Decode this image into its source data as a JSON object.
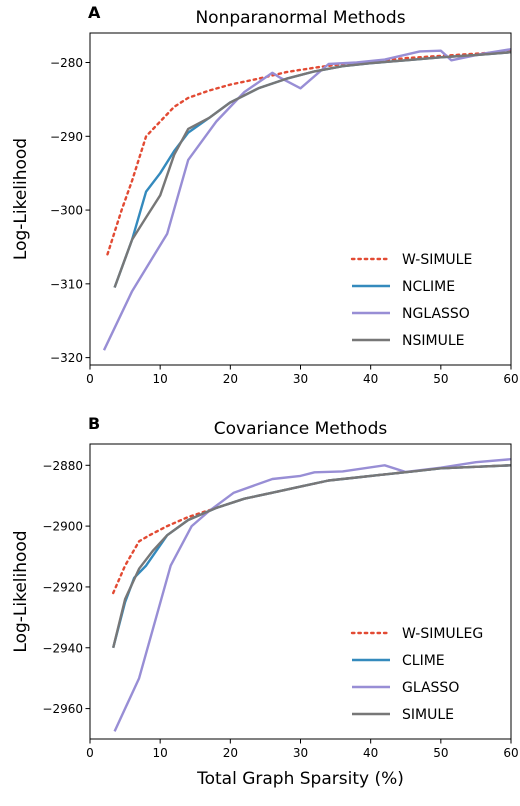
{
  "chart_data": [
    {
      "panel_letter": "A",
      "type": "line",
      "title": "Nonparanormal Methods",
      "xlabel": "",
      "ylabel": "Log-Likelihood",
      "xlim": [
        0,
        60
      ],
      "ylim": [
        -321,
        -276
      ],
      "xticks": [
        0,
        10,
        20,
        30,
        40,
        50,
        60
      ],
      "yticks": [
        -320,
        -310,
        -300,
        -290,
        -280
      ],
      "grid": false,
      "legend_position": "lower-right",
      "series": [
        {
          "name": "W-SIMULE",
          "color": "#e24a33",
          "dash": "dotted",
          "x": [
            2.5,
            4.5,
            6,
            8,
            10,
            12,
            14,
            17,
            20,
            24,
            28,
            32,
            36,
            40,
            45,
            50,
            55,
            60
          ],
          "y": [
            -306,
            -300,
            -296,
            -290,
            -288,
            -286,
            -284.8,
            -283.8,
            -283,
            -282.2,
            -281.3,
            -280.7,
            -280.2,
            -279.9,
            -279.4,
            -279.1,
            -278.8,
            -278.5
          ]
        },
        {
          "name": "NCLIME",
          "color": "#348abd",
          "dash": "solid",
          "x": [
            3.5,
            6,
            8,
            10,
            12,
            14,
            17,
            20,
            24,
            28,
            32,
            36,
            40,
            45,
            50,
            55,
            60
          ],
          "y": [
            -310.5,
            -304,
            -297.5,
            -295,
            -292,
            -289.5,
            -287.5,
            -285.4,
            -283.5,
            -282.2,
            -281.2,
            -280.5,
            -280.1,
            -279.7,
            -279.3,
            -279,
            -278.6
          ]
        },
        {
          "name": "NGLASSO",
          "color": "#988ed5",
          "dash": "solid",
          "x": [
            2,
            6,
            11,
            14,
            18,
            22,
            26,
            27,
            30,
            34,
            38,
            42,
            47,
            50,
            51.5,
            56,
            60
          ],
          "y": [
            -319,
            -311,
            -303.2,
            -293.2,
            -288,
            -284,
            -281.4,
            -282,
            -283.5,
            -280.2,
            -280,
            -279.6,
            -278.5,
            -278.4,
            -279.7,
            -278.8,
            -278.2
          ]
        },
        {
          "name": "NSIMULE",
          "color": "#777777",
          "dash": "solid",
          "x": [
            3.5,
            6,
            8,
            10,
            12,
            14,
            17,
            20,
            24,
            28,
            32,
            36,
            40,
            45,
            50,
            55,
            60
          ],
          "y": [
            -310.5,
            -304,
            -301,
            -298,
            -292.5,
            -289,
            -287.5,
            -285.4,
            -283.5,
            -282.2,
            -281.2,
            -280.5,
            -280.1,
            -279.7,
            -279.3,
            -279,
            -278.6
          ]
        }
      ]
    },
    {
      "panel_letter": "B",
      "type": "line",
      "title": "Covariance Methods",
      "xlabel": "Total Graph Sparsity (%)",
      "ylabel": "Log-Likelihood",
      "xlim": [
        0,
        60
      ],
      "ylim": [
        -2970,
        -2873
      ],
      "xticks": [
        0,
        10,
        20,
        30,
        40,
        50,
        60
      ],
      "yticks": [
        -2960,
        -2940,
        -2920,
        -2900,
        -2880
      ],
      "grid": false,
      "legend_position": "lower-right",
      "series": [
        {
          "name": "W-SIMULEG",
          "color": "#e24a33",
          "dash": "dotted",
          "x": [
            3.3,
            5,
            7,
            8.5,
            11,
            14,
            18,
            22,
            26,
            30,
            34,
            38,
            42,
            46,
            50,
            55,
            60
          ],
          "y": [
            -2922,
            -2913,
            -2905,
            -2903,
            -2900,
            -2897,
            -2894,
            -2891,
            -2889,
            -2887,
            -2885,
            -2884,
            -2883,
            -2882,
            -2881,
            -2880.5,
            -2880
          ]
        },
        {
          "name": "CLIME",
          "color": "#348abd",
          "dash": "solid",
          "x": [
            3.3,
            5,
            6.3,
            8,
            11,
            14,
            18,
            22,
            26,
            30,
            34,
            38,
            42,
            46,
            50,
            55,
            60
          ],
          "y": [
            -2940,
            -2925,
            -2917,
            -2913,
            -2903,
            -2898,
            -2894,
            -2891,
            -2889,
            -2887,
            -2885,
            -2884,
            -2883,
            -2882,
            -2881,
            -2880.5,
            -2880
          ]
        },
        {
          "name": "GLASSO",
          "color": "#988ed5",
          "dash": "solid",
          "x": [
            3.5,
            7,
            11.5,
            14.5,
            17,
            20.5,
            26,
            30,
            32,
            36,
            42,
            45,
            50,
            55,
            60
          ],
          "y": [
            -2967.5,
            -2950,
            -2913,
            -2900,
            -2895,
            -2889,
            -2884.5,
            -2883.5,
            -2882.3,
            -2882,
            -2880,
            -2882.2,
            -2880.8,
            -2879,
            -2878
          ]
        },
        {
          "name": "SIMULE",
          "color": "#777777",
          "dash": "solid",
          "x": [
            3.3,
            5,
            7,
            9,
            11,
            14,
            18,
            22,
            26,
            30,
            34,
            38,
            42,
            46,
            50,
            55,
            60
          ],
          "y": [
            -2940,
            -2924,
            -2914,
            -2908,
            -2903,
            -2898,
            -2894,
            -2891,
            -2889,
            -2887,
            -2885,
            -2884,
            -2883,
            -2882,
            -2881,
            -2880.5,
            -2880
          ]
        }
      ]
    }
  ]
}
